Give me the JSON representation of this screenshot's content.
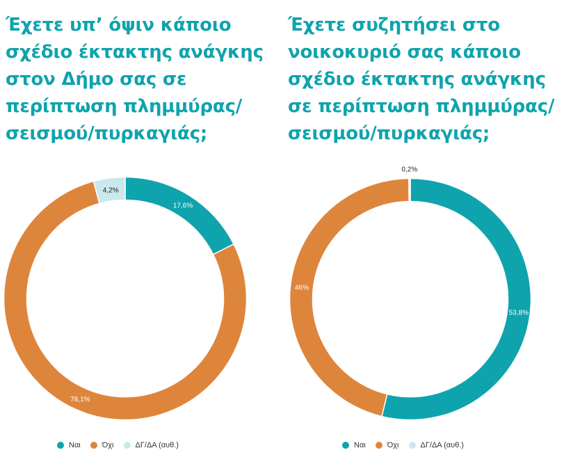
{
  "colors": {
    "yes": "#0fa3ad",
    "no": "#de853c",
    "na": "#c9e9ec",
    "title": "#0fa3ad"
  },
  "chart_data": [
    {
      "type": "pie",
      "style": "donut",
      "title": "Έχετε υπ’ όψιν κάποιο σχέδιο έκτακτης ανάγκης στον Δήμο σας σε περίπτωση πλημμύρας/ σεισμού/πυρκαγιάς;",
      "legend_position": "bottom",
      "slices": [
        {
          "label": "Ναι",
          "value": 17.6,
          "display": "17,6%",
          "color": "#0fa3ad"
        },
        {
          "label": "Όχι",
          "value": 78.1,
          "display": "78,1%",
          "color": "#de853c"
        },
        {
          "label": "ΔΓ/ΔΑ (αυθ.)",
          "value": 4.2,
          "display": "4,2%",
          "color": "#c9e9ec"
        }
      ]
    },
    {
      "type": "pie",
      "style": "donut",
      "title": "Έχετε συζητήσει στο νοικοκυριό σας κάποιο σχέδιο έκτακτης ανάγκης σε περίπτωση πλημμύρας/ σεισμού/πυρκαγιάς;",
      "legend_position": "bottom",
      "slices": [
        {
          "label": "Ναι",
          "value": 53.8,
          "display": "53,8%",
          "color": "#0fa3ad"
        },
        {
          "label": "Όχι",
          "value": 46,
          "display": "46%",
          "color": "#de853c"
        },
        {
          "label": "ΔΓ/ΔΑ (αυθ.)",
          "value": 0.2,
          "display": "0,2%",
          "color": "#c9e9ec"
        }
      ]
    }
  ],
  "legend": {
    "yes": "Ναι",
    "no": "Όχι",
    "na": "ΔΓ/ΔΑ (αυθ.)"
  }
}
